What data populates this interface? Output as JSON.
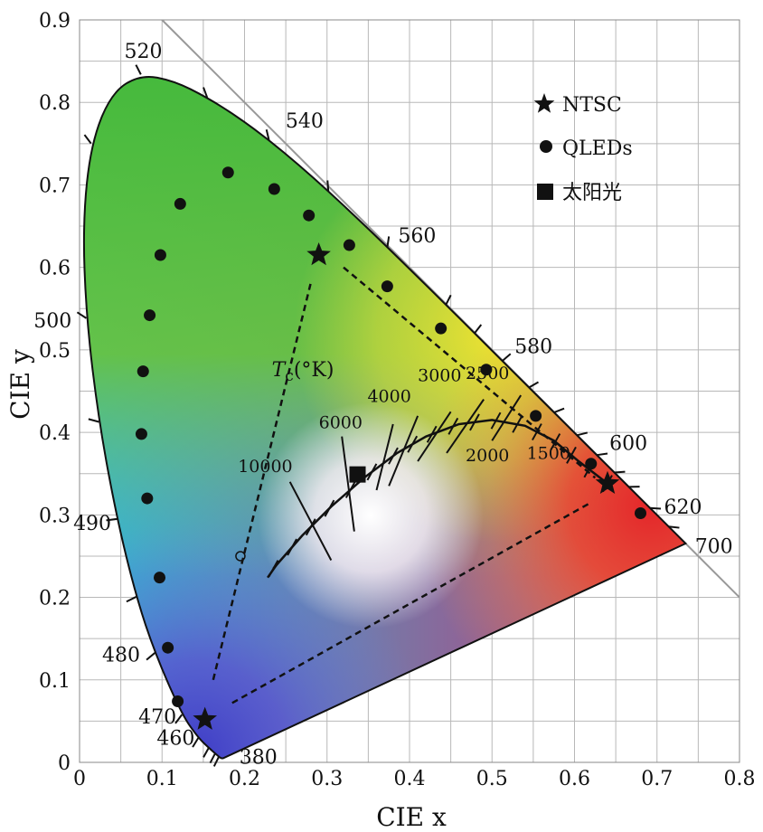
{
  "chart_data": {
    "type": "scatter",
    "xlabel": "CIE x",
    "ylabel": "CIE y",
    "xlim": [
      0,
      0.8
    ],
    "ylim": [
      0,
      0.9
    ],
    "grid": true,
    "xticks": [
      "0",
      "0.1",
      "0.2",
      "0.3",
      "0.4",
      "0.5",
      "0.6",
      "0.7",
      "0.8"
    ],
    "yticks": [
      "0",
      "0.1",
      "0.2",
      "0.3",
      "0.4",
      "0.5",
      "0.6",
      "0.7",
      "0.8",
      "0.9"
    ],
    "legend": {
      "placement": "top-right",
      "entries": [
        {
          "marker": "star",
          "label": "NTSC"
        },
        {
          "marker": "circle",
          "label": "QLEDs"
        },
        {
          "marker": "square",
          "label": "太阳光"
        }
      ]
    },
    "spectral_locus_labels": [
      {
        "label": "380",
        "x": 0.174,
        "y": 0.005
      },
      {
        "label": "460",
        "x": 0.144,
        "y": 0.03
      },
      {
        "label": "470",
        "x": 0.124,
        "y": 0.058
      },
      {
        "label": "480",
        "x": 0.091,
        "y": 0.133
      },
      {
        "label": "490",
        "x": 0.045,
        "y": 0.295
      },
      {
        "label": "500",
        "x": 0.008,
        "y": 0.538
      },
      {
        "label": "520",
        "x": 0.074,
        "y": 0.834
      },
      {
        "label": "540",
        "x": 0.23,
        "y": 0.754
      },
      {
        "label": "560",
        "x": 0.373,
        "y": 0.624
      },
      {
        "label": "580",
        "x": 0.512,
        "y": 0.487
      },
      {
        "label": "600",
        "x": 0.627,
        "y": 0.372
      },
      {
        "label": "620",
        "x": 0.691,
        "y": 0.308
      },
      {
        "label": "700",
        "x": 0.735,
        "y": 0.265
      }
    ],
    "series": [
      {
        "name": "NTSC",
        "marker": "star",
        "points": [
          [
            0.29,
            0.615
          ],
          [
            0.152,
            0.052
          ],
          [
            0.64,
            0.338
          ]
        ]
      },
      {
        "name": "QLEDs",
        "marker": "circle",
        "points": [
          [
            0.18,
            0.715
          ],
          [
            0.236,
            0.695
          ],
          [
            0.122,
            0.677
          ],
          [
            0.278,
            0.663
          ],
          [
            0.327,
            0.627
          ],
          [
            0.098,
            0.615
          ],
          [
            0.373,
            0.577
          ],
          [
            0.085,
            0.542
          ],
          [
            0.438,
            0.526
          ],
          [
            0.077,
            0.474
          ],
          [
            0.493,
            0.476
          ],
          [
            0.075,
            0.398
          ],
          [
            0.553,
            0.42
          ],
          [
            0.082,
            0.32
          ],
          [
            0.62,
            0.362
          ],
          [
            0.097,
            0.224
          ],
          [
            0.68,
            0.302
          ],
          [
            0.107,
            0.139
          ],
          [
            0.119,
            0.074
          ]
        ]
      },
      {
        "name": "太阳光",
        "marker": "square",
        "points": [
          [
            0.337,
            0.349
          ]
        ]
      }
    ],
    "annotations": {
      "tc_label": {
        "italic": "T",
        "sub": "c",
        "rest": "(°K)"
      },
      "cct_labels": [
        "10000",
        "6000",
        "4000",
        "3000",
        "2500",
        "2000",
        "1500"
      ]
    }
  }
}
